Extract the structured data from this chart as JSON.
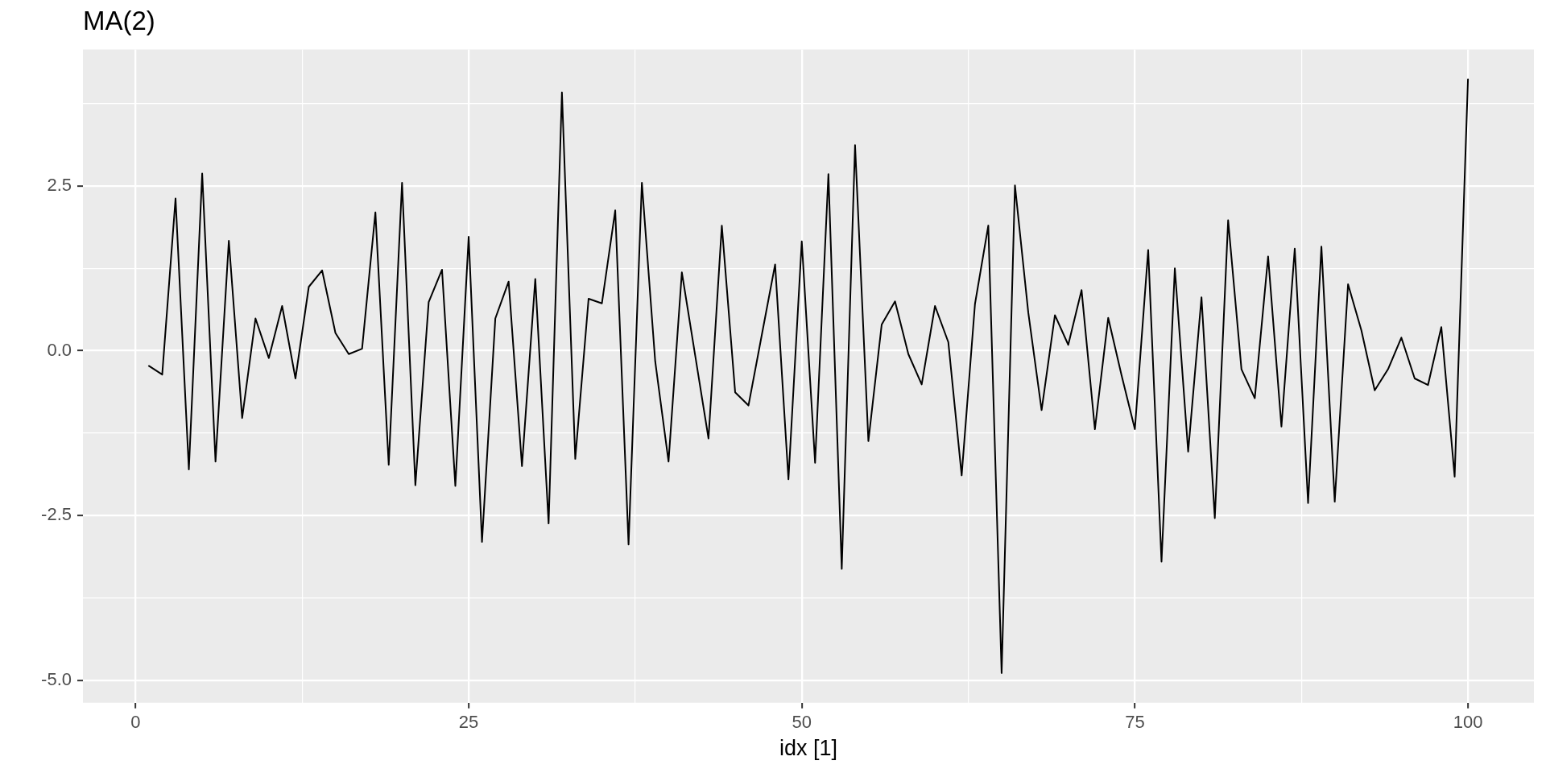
{
  "chart_data": {
    "type": "line",
    "title": "MA(2)",
    "xlabel": "idx [1]",
    "x": [
      1,
      2,
      3,
      4,
      5,
      6,
      7,
      8,
      9,
      10,
      11,
      12,
      13,
      14,
      15,
      16,
      17,
      18,
      19,
      20,
      21,
      22,
      23,
      24,
      25,
      26,
      27,
      28,
      29,
      30,
      31,
      32,
      33,
      34,
      35,
      36,
      37,
      38,
      39,
      40,
      41,
      42,
      43,
      44,
      45,
      46,
      47,
      48,
      49,
      50,
      51,
      52,
      53,
      54,
      55,
      56,
      57,
      58,
      59,
      60,
      61,
      62,
      63,
      64,
      65,
      66,
      67,
      68,
      69,
      70,
      71,
      72,
      73,
      74,
      75,
      76,
      77,
      78,
      79,
      80,
      81,
      82,
      83,
      84,
      85,
      86,
      87,
      88,
      89,
      90,
      91,
      92,
      93,
      94,
      95,
      96,
      97,
      98,
      99,
      100
    ],
    "values": [
      -0.23,
      -0.36,
      2.31,
      -1.8,
      2.69,
      -1.68,
      1.67,
      -1.02,
      0.49,
      -0.11,
      0.68,
      -0.42,
      0.97,
      1.22,
      0.27,
      -0.05,
      0.03,
      2.1,
      -1.73,
      2.55,
      -2.04,
      0.74,
      1.23,
      -2.05,
      1.73,
      -2.9,
      0.49,
      1.05,
      -1.75,
      1.09,
      -2.62,
      3.92,
      -1.64,
      0.79,
      0.72,
      2.13,
      -2.94,
      2.55,
      -0.16,
      -1.68,
      1.19,
      -0.07,
      -1.33,
      1.9,
      -0.63,
      -0.83,
      0.24,
      1.31,
      -1.95,
      1.66,
      -1.7,
      2.68,
      -3.31,
      3.12,
      -1.37,
      0.4,
      0.75,
      -0.05,
      -0.51,
      0.68,
      0.13,
      -1.89,
      0.71,
      1.9,
      -4.89,
      2.51,
      0.58,
      -0.9,
      0.54,
      0.09,
      0.92,
      -1.19,
      0.5,
      -0.37,
      -1.19,
      1.53,
      -3.2,
      1.25,
      -1.53,
      0.81,
      -2.54,
      1.98,
      -0.28,
      -0.72,
      1.43,
      -1.15,
      1.55,
      -2.31,
      1.58,
      -2.29,
      1.01,
      0.31,
      -0.6,
      -0.28,
      0.2,
      -0.42,
      -0.52,
      0.36,
      -1.91,
      4.12
    ],
    "color": "#000000",
    "xlim": [
      -3.95,
      104.95
    ],
    "xticks": [
      0,
      {
        "value": 12.5,
        "label": null
      },
      25,
      {
        "value": 37.5,
        "label": null
      },
      50,
      {
        "value": 62.5,
        "label": null
      },
      75,
      {
        "value": 87.5,
        "label": null
      },
      100
    ],
    "ylim": [
      -5.34,
      4.57
    ],
    "yticks": [
      {
        "value": -5,
        "label": "-5.0"
      },
      {
        "value": -3.75,
        "label": null
      },
      -2.5,
      {
        "value": -1.25,
        "label": null
      },
      {
        "value": 0,
        "label": "0.0"
      },
      {
        "value": 1.25,
        "label": null
      },
      2.5,
      {
        "value": 3.75,
        "label": null
      }
    ],
    "grid": true
  }
}
